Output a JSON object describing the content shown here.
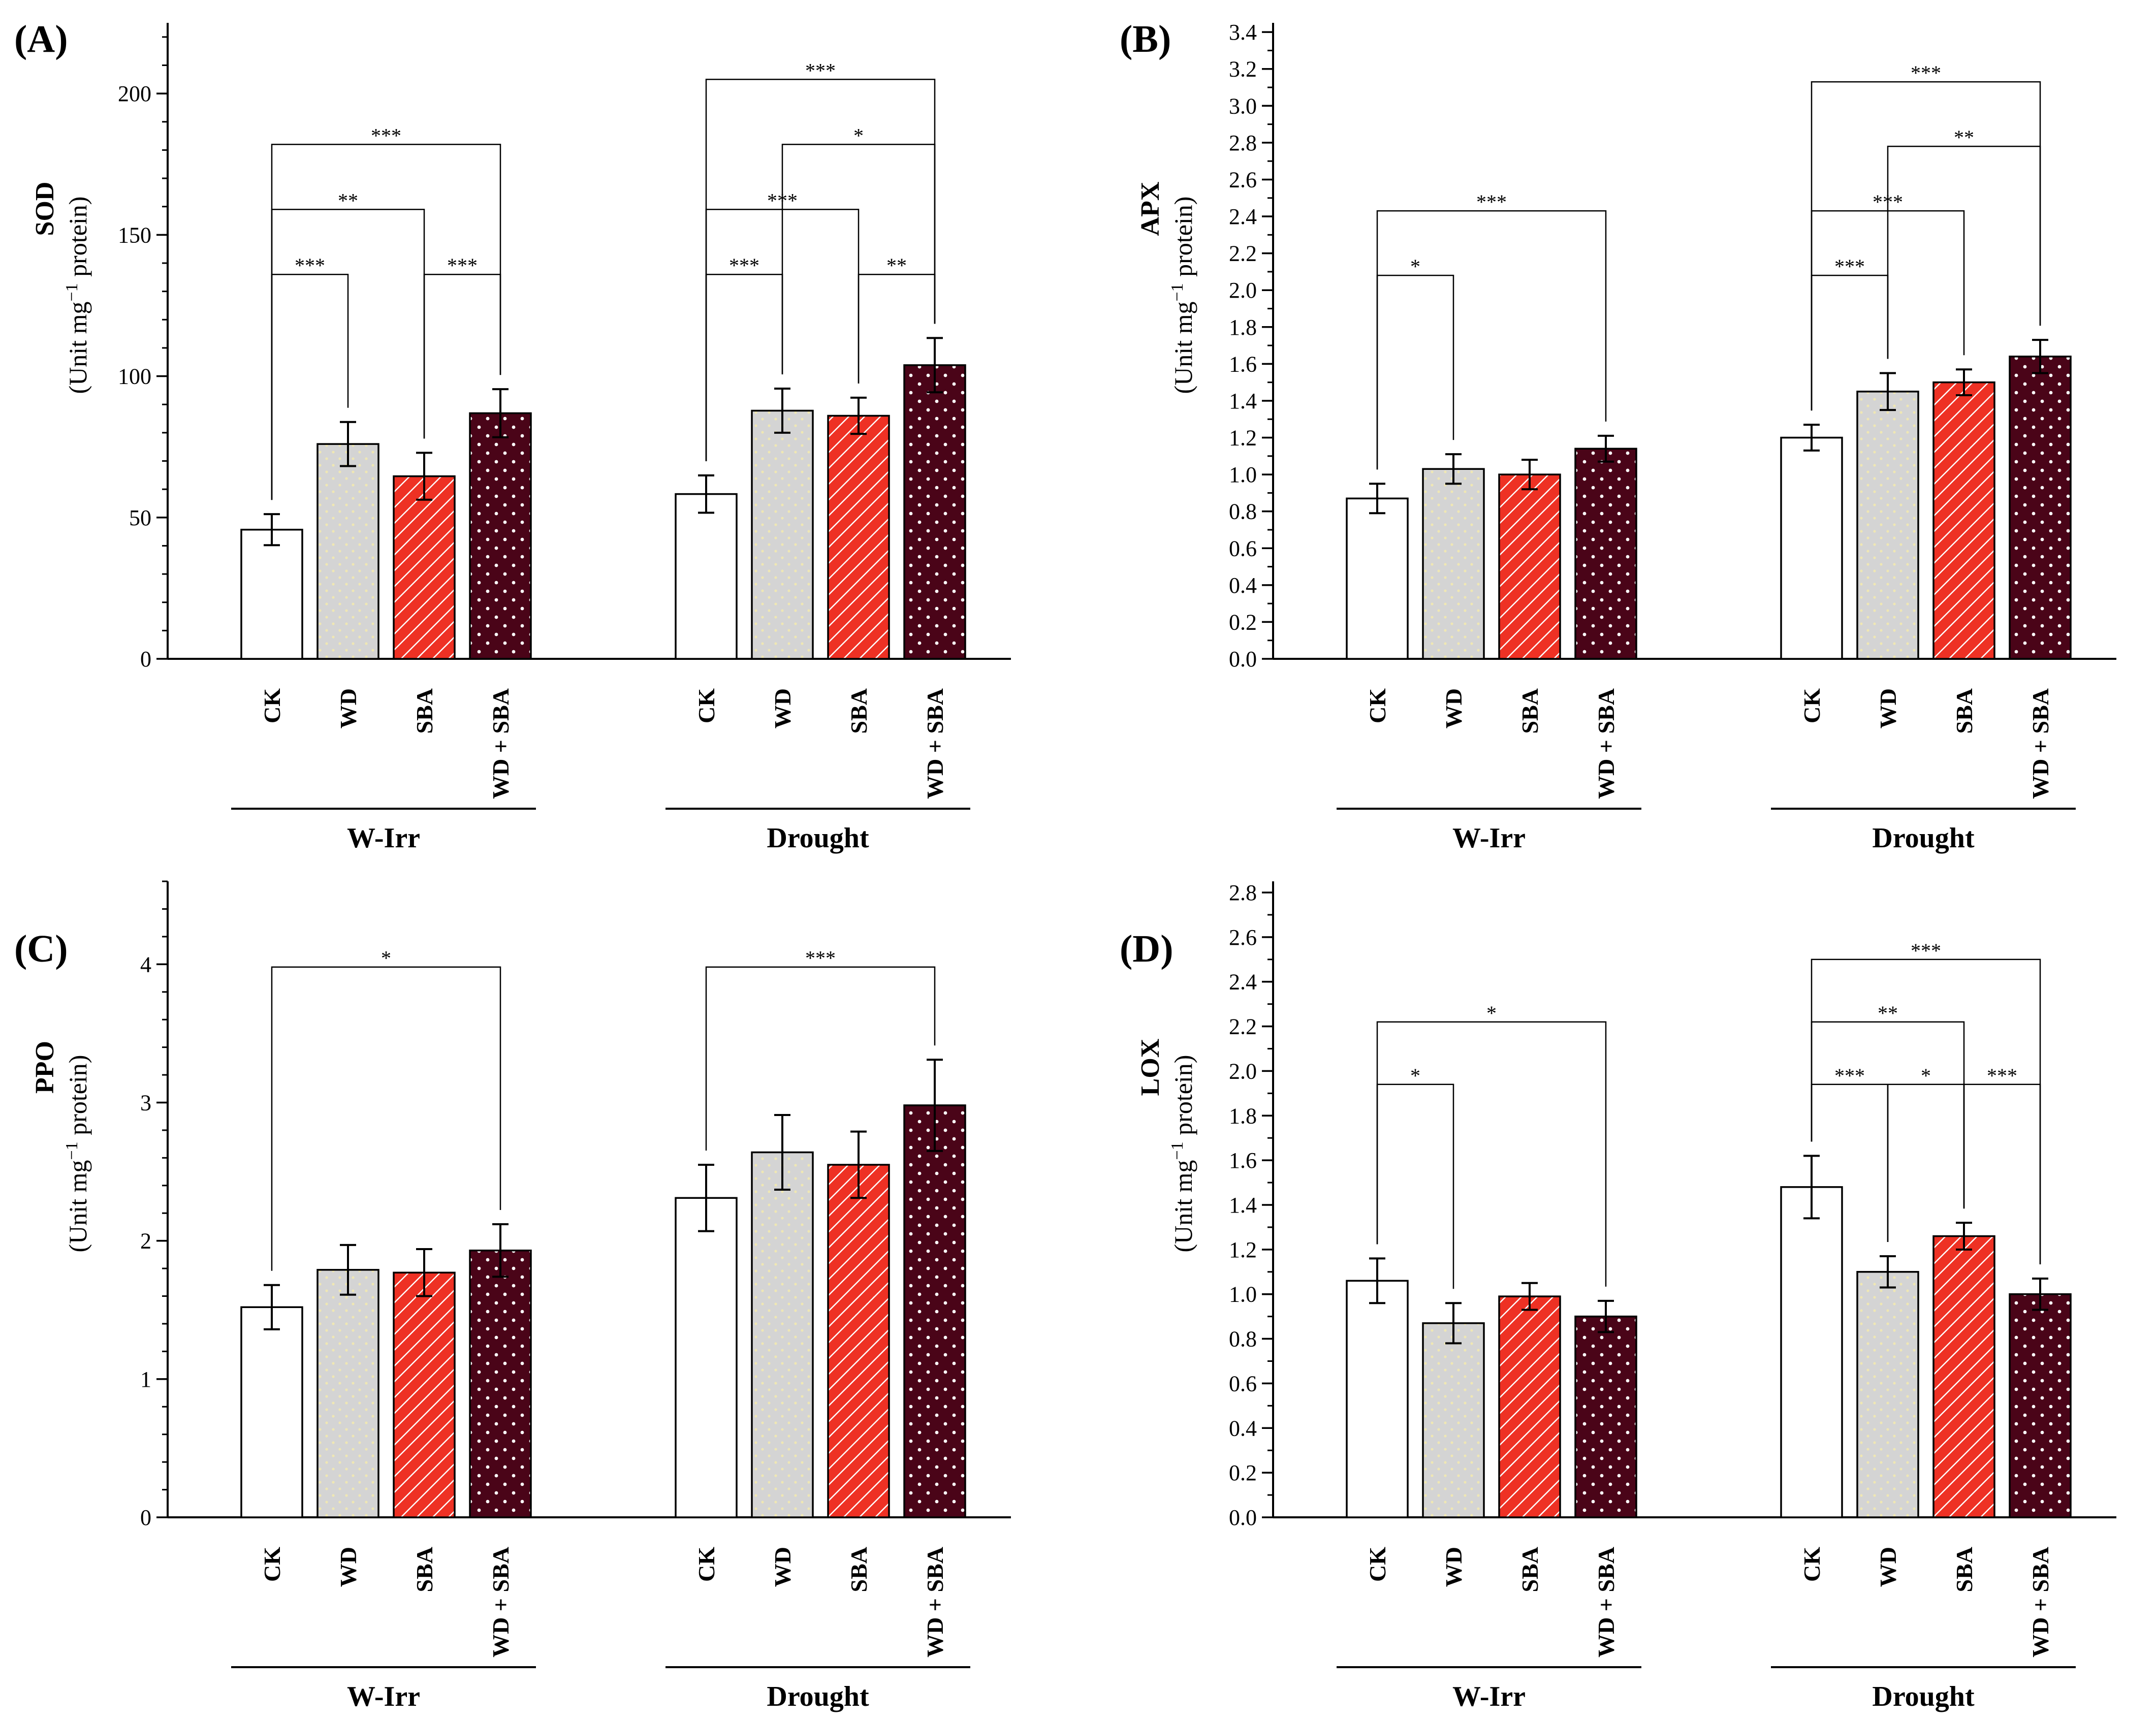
{
  "colors": {
    "CK": "#ffffff",
    "WD": "#d4d4d4",
    "SBA": "#ee3124",
    "WD + SBA": "#4a0418",
    "WD_pattern": "#efe7b4",
    "SBA_pattern": "#ffffff",
    "WD + SBA_pattern": "#ffffff"
  },
  "chart_data": [
    {
      "panel_label": "(A)",
      "type": "bar",
      "ylabel": "SOD",
      "yunit_pre": "(Unit mg",
      "yunit_sup": "−1",
      "yunit_post": " protein)",
      "ylim": [
        0,
        225
      ],
      "yticks": [
        0,
        50,
        100,
        150,
        200
      ],
      "ytick_labels": [
        "0",
        "50",
        "100",
        "150",
        "200"
      ],
      "minor_tick_step": 10,
      "groups": [
        "W-Irr",
        "Drought"
      ],
      "categories": [
        "CK",
        "WD",
        "SBA",
        "WD + SBA"
      ],
      "series": [
        {
          "group": "W-Irr",
          "values": [
            45.7,
            76.0,
            64.6,
            86.9
          ],
          "errors": [
            5.5,
            7.8,
            8.3,
            8.5
          ]
        },
        {
          "group": "Drought",
          "values": [
            58.3,
            87.8,
            86.0,
            103.9
          ],
          "errors": [
            6.6,
            7.8,
            6.4,
            9.6
          ]
        }
      ],
      "significance": [
        {
          "group": 0,
          "from": 0,
          "to": 1,
          "y": 136,
          "label": "***"
        },
        {
          "group": 0,
          "from": 2,
          "to": 3,
          "y": 136,
          "label": "***"
        },
        {
          "group": 0,
          "from": 0,
          "to": 2,
          "y": 159,
          "label": "**"
        },
        {
          "group": 0,
          "from": 0,
          "to": 3,
          "y": 182,
          "label": "***"
        },
        {
          "group": 1,
          "from": 0,
          "to": 1,
          "y": 136,
          "label": "***"
        },
        {
          "group": 1,
          "from": 2,
          "to": 3,
          "y": 136,
          "label": "**"
        },
        {
          "group": 1,
          "from": 0,
          "to": 2,
          "y": 159,
          "label": "***"
        },
        {
          "group": 1,
          "from": 1,
          "to": 3,
          "y": 182,
          "label": "*"
        },
        {
          "group": 1,
          "from": 0,
          "to": 3,
          "y": 205,
          "label": "***"
        }
      ]
    },
    {
      "panel_label": "(B)",
      "type": "bar",
      "ylabel": "APX",
      "yunit_pre": "(Unit mg",
      "yunit_sup": "−1",
      "yunit_post": " protein)",
      "ylim": [
        0,
        3.45
      ],
      "yticks": [
        0,
        0.2,
        0.4,
        0.6,
        0.8,
        1.0,
        1.2,
        1.4,
        1.6,
        1.8,
        2.0,
        2.2,
        2.4,
        2.6,
        2.8,
        3.0,
        3.2,
        3.4
      ],
      "ytick_labels": [
        "0.0",
        "0.2",
        "0.4",
        "0.6",
        "0.8",
        "1.0",
        "1.2",
        "1.4",
        "1.6",
        "1.8",
        "2.0",
        "2.2",
        "2.4",
        "2.6",
        "2.8",
        "3.0",
        "3.2",
        "3.4"
      ],
      "minor_tick_step": 0.1,
      "groups": [
        "W-Irr",
        "Drought"
      ],
      "categories": [
        "CK",
        "WD",
        "SBA",
        "WD + SBA"
      ],
      "series": [
        {
          "group": "W-Irr",
          "values": [
            0.87,
            1.03,
            1.0,
            1.14
          ],
          "errors": [
            0.08,
            0.08,
            0.08,
            0.07
          ]
        },
        {
          "group": "Drought",
          "values": [
            1.2,
            1.45,
            1.5,
            1.64
          ],
          "errors": [
            0.07,
            0.1,
            0.07,
            0.09
          ]
        }
      ],
      "significance": [
        {
          "group": 0,
          "from": 0,
          "to": 1,
          "y": 2.08,
          "label": "*"
        },
        {
          "group": 0,
          "from": 0,
          "to": 3,
          "y": 2.43,
          "label": "***"
        },
        {
          "group": 1,
          "from": 0,
          "to": 1,
          "y": 2.08,
          "label": "***"
        },
        {
          "group": 1,
          "from": 0,
          "to": 2,
          "y": 2.43,
          "label": "***"
        },
        {
          "group": 1,
          "from": 1,
          "to": 3,
          "y": 2.78,
          "label": "**"
        },
        {
          "group": 1,
          "from": 0,
          "to": 3,
          "y": 3.13,
          "label": "***"
        }
      ]
    },
    {
      "panel_label": "(C)",
      "type": "bar",
      "ylabel": "PPO",
      "yunit_pre": "(Unit mg",
      "yunit_sup": "−1",
      "yunit_post": " protein)",
      "ylim": [
        0,
        4.6
      ],
      "yticks": [
        0,
        1,
        2,
        3,
        4
      ],
      "ytick_labels": [
        "0",
        "1",
        "2",
        "3",
        "4"
      ],
      "minor_tick_step": 0.2,
      "groups": [
        "W-Irr",
        "Drought"
      ],
      "categories": [
        "CK",
        "WD",
        "SBA",
        "WD + SBA"
      ],
      "series": [
        {
          "group": "W-Irr",
          "values": [
            1.52,
            1.79,
            1.77,
            1.93
          ],
          "errors": [
            0.16,
            0.18,
            0.17,
            0.19
          ]
        },
        {
          "group": "Drought",
          "values": [
            2.31,
            2.64,
            2.55,
            2.98
          ],
          "errors": [
            0.24,
            0.27,
            0.24,
            0.33
          ]
        }
      ],
      "significance": [
        {
          "group": 0,
          "from": 0,
          "to": 3,
          "y": 3.98,
          "label": "*"
        },
        {
          "group": 1,
          "from": 0,
          "to": 3,
          "y": 3.98,
          "label": "***"
        }
      ]
    },
    {
      "panel_label": "(D)",
      "type": "bar",
      "ylabel": "LOX",
      "yunit_pre": "(Unit mg",
      "yunit_sup": "−1",
      "yunit_post": " protein)",
      "ylim": [
        0,
        2.85
      ],
      "yticks": [
        0,
        0.2,
        0.4,
        0.6,
        0.8,
        1.0,
        1.2,
        1.4,
        1.6,
        1.8,
        2.0,
        2.2,
        2.4,
        2.6,
        2.8
      ],
      "ytick_labels": [
        "0.0",
        "0.2",
        "0.4",
        "0.6",
        "0.8",
        "1.0",
        "1.2",
        "1.4",
        "1.6",
        "1.8",
        "2.0",
        "2.2",
        "2.4",
        "2.6",
        "2.8"
      ],
      "minor_tick_step": 0.1,
      "groups": [
        "W-Irr",
        "Drought"
      ],
      "categories": [
        "CK",
        "WD",
        "SBA",
        "WD + SBA"
      ],
      "series": [
        {
          "group": "W-Irr",
          "values": [
            1.06,
            0.87,
            0.99,
            0.9
          ],
          "errors": [
            0.1,
            0.09,
            0.06,
            0.07
          ]
        },
        {
          "group": "Drought",
          "values": [
            1.48,
            1.1,
            1.26,
            1.0
          ],
          "errors": [
            0.14,
            0.07,
            0.06,
            0.07
          ]
        }
      ],
      "significance": [
        {
          "group": 0,
          "from": 0,
          "to": 1,
          "y": 1.94,
          "label": "*"
        },
        {
          "group": 0,
          "from": 0,
          "to": 3,
          "y": 2.22,
          "label": "*"
        },
        {
          "group": 1,
          "from": 0,
          "to": 1,
          "y": 1.94,
          "label": "***"
        },
        {
          "group": 1,
          "from": 1,
          "to": 2,
          "y": 1.94,
          "label": "*"
        },
        {
          "group": 1,
          "from": 2,
          "to": 3,
          "y": 1.94,
          "label": "***"
        },
        {
          "group": 1,
          "from": 0,
          "to": 2,
          "y": 2.22,
          "label": "**"
        },
        {
          "group": 1,
          "from": 0,
          "to": 3,
          "y": 2.5,
          "label": "***"
        }
      ]
    }
  ]
}
